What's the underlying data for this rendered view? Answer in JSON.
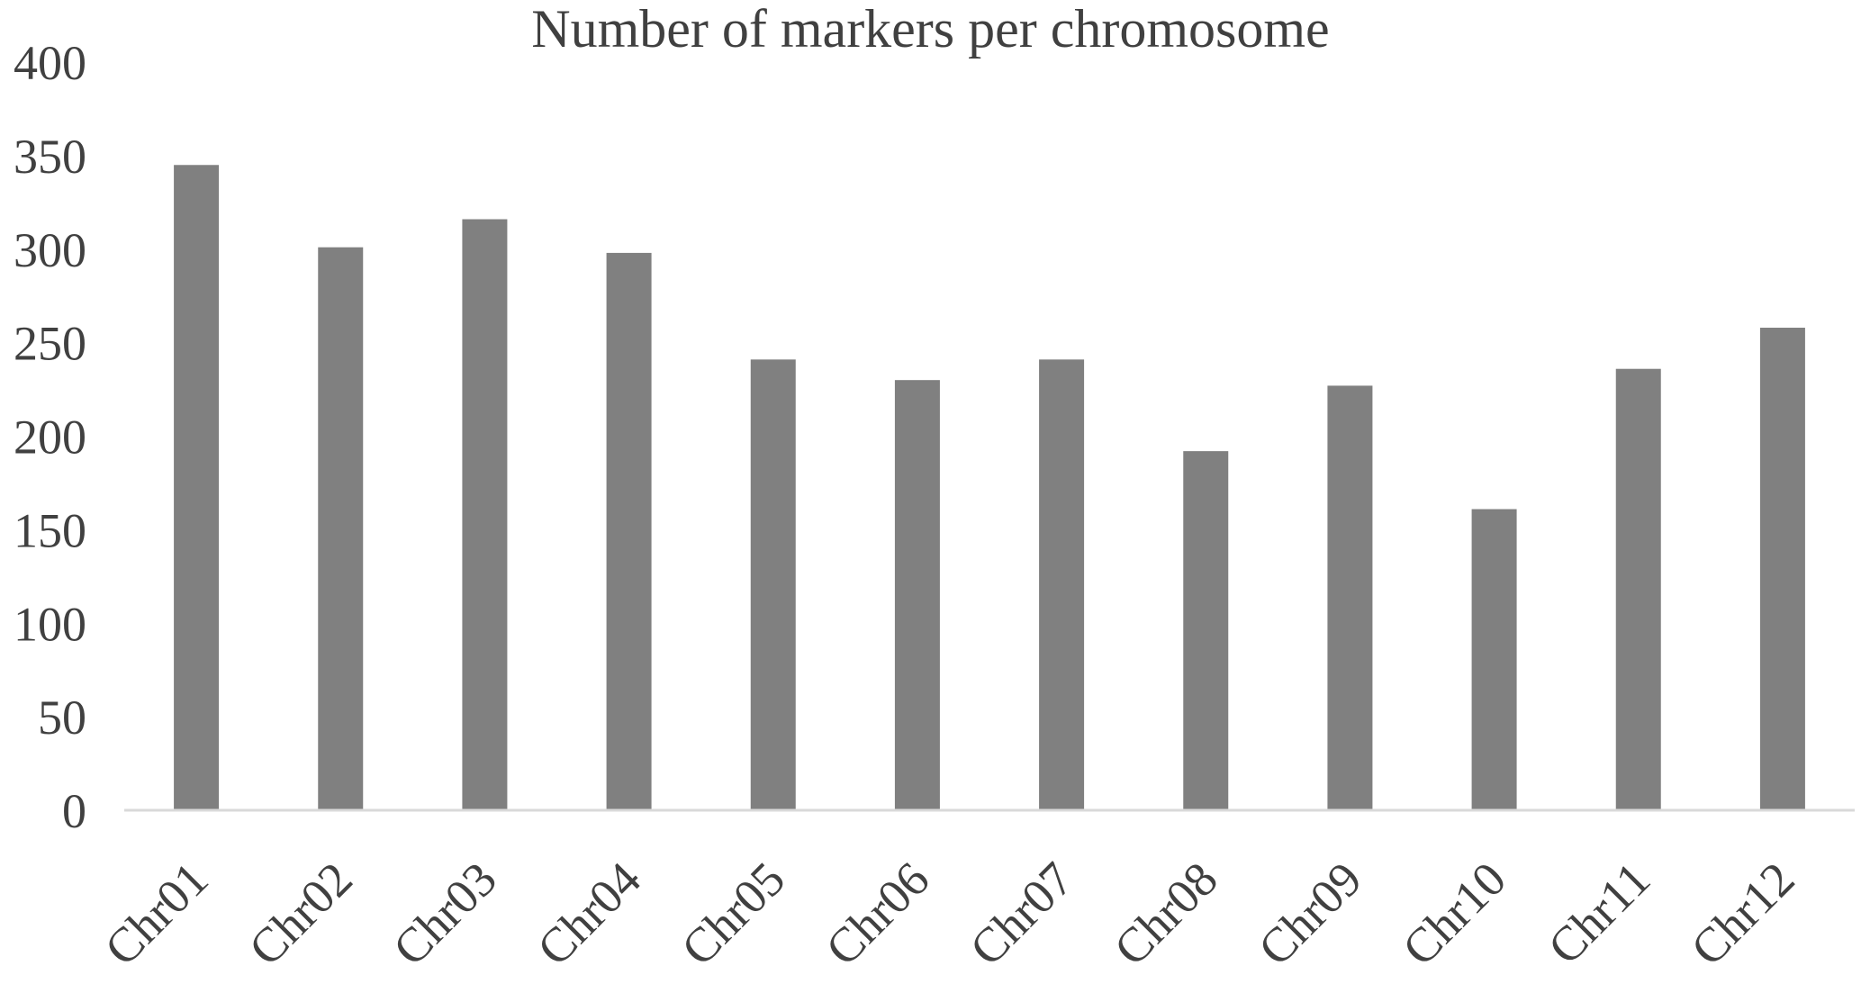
{
  "chart_data": {
    "type": "bar",
    "title": "Number of markers per chromosome",
    "xlabel": "",
    "ylabel": "",
    "categories": [
      "Chr01",
      "Chr02",
      "Chr03",
      "Chr04",
      "Chr05",
      "Chr06",
      "Chr07",
      "Chr08",
      "Chr09",
      "Chr10",
      "Chr11",
      "Chr12"
    ],
    "values": [
      345,
      301,
      316,
      298,
      241,
      230,
      241,
      192,
      227,
      161,
      236,
      258
    ],
    "ylim": [
      0,
      400
    ],
    "yticks": [
      "0",
      "50",
      "100",
      "150",
      "200",
      "250",
      "300",
      "350",
      "400"
    ],
    "grid": false,
    "legend": "none",
    "bar_color": "#808080",
    "axis_color": "#d9d9d9",
    "text_color": "#404040"
  }
}
